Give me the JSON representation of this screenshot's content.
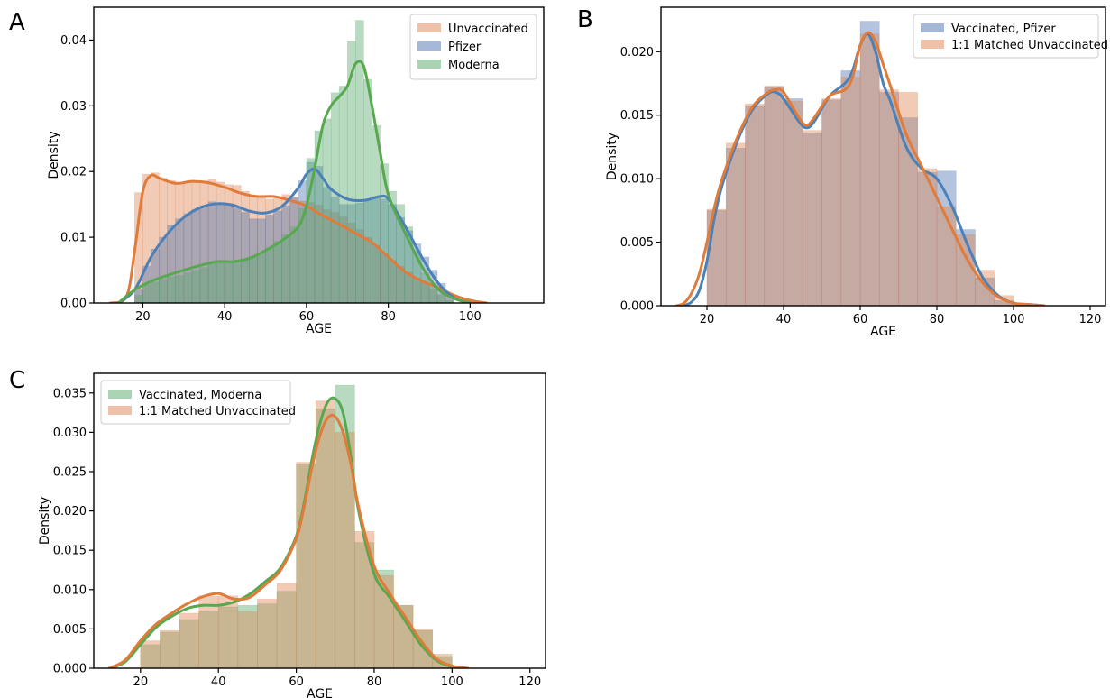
{
  "colors": {
    "orange": "#dd8452",
    "blue": "#4c72b0",
    "green": "#55a868",
    "orange_kde": "#e07b39",
    "blue_kde": "#4b80b8",
    "green_kde": "#57a84e"
  },
  "chart_data": [
    {
      "panel": "A",
      "type": "bar",
      "xlabel": "AGE",
      "ylabel": "Density",
      "xlim": [
        8,
        118
      ],
      "ylim": [
        0,
        0.045
      ],
      "xticks": [
        20,
        40,
        60,
        80,
        100
      ],
      "yticks": [
        0.0,
        0.01,
        0.02,
        0.03,
        0.04
      ],
      "ytick_labels": [
        "0.00",
        "0.01",
        "0.02",
        "0.03",
        "0.04"
      ],
      "grid": false,
      "legend_position": "top-right",
      "series": [
        {
          "name": "Unvaccinated",
          "color": "#dd8452",
          "bin_width": 2,
          "bins_x": [
            18,
            20,
            22,
            24,
            26,
            28,
            30,
            32,
            34,
            36,
            38,
            40,
            42,
            44,
            46,
            48,
            50,
            52,
            54,
            56,
            58,
            60,
            62,
            64,
            66,
            68,
            70,
            72,
            74,
            76,
            78,
            80,
            82,
            84,
            86,
            88,
            90,
            92,
            94
          ],
          "values": [
            0.0168,
            0.0196,
            0.0198,
            0.019,
            0.0186,
            0.0184,
            0.0184,
            0.0186,
            0.0186,
            0.0188,
            0.0184,
            0.018,
            0.0179,
            0.017,
            0.0164,
            0.0162,
            0.0158,
            0.0162,
            0.0165,
            0.0161,
            0.0155,
            0.0153,
            0.0149,
            0.0142,
            0.0138,
            0.0131,
            0.0122,
            0.0112,
            0.01,
            0.0088,
            0.0076,
            0.0065,
            0.0056,
            0.0047,
            0.0038,
            0.003,
            0.0022,
            0.0014,
            0.0008
          ],
          "kde_x": [
            12,
            16,
            18,
            20,
            22,
            24,
            28,
            32,
            36,
            40,
            44,
            48,
            52,
            56,
            60,
            62,
            64,
            68,
            72,
            76,
            80,
            84,
            88,
            92,
            96,
            100,
            104
          ],
          "kde_y": [
            0.0,
            0.001,
            0.008,
            0.017,
            0.0194,
            0.019,
            0.0182,
            0.0185,
            0.0183,
            0.0176,
            0.0167,
            0.0162,
            0.0162,
            0.0156,
            0.0148,
            0.014,
            0.0133,
            0.012,
            0.0106,
            0.0092,
            0.007,
            0.0048,
            0.0034,
            0.0024,
            0.0012,
            0.0004,
            0.0
          ]
        },
        {
          "name": "Pfizer",
          "color": "#4c72b0",
          "bin_width": 2,
          "bins_x": [
            18,
            20,
            22,
            24,
            26,
            28,
            30,
            32,
            34,
            36,
            38,
            40,
            42,
            44,
            46,
            48,
            50,
            52,
            54,
            56,
            58,
            60,
            62,
            64,
            66,
            68,
            70,
            72,
            74,
            76,
            78,
            80,
            82,
            84,
            86,
            88,
            90,
            92,
            94
          ],
          "values": [
            0.002,
            0.0056,
            0.0082,
            0.01,
            0.0118,
            0.0128,
            0.0136,
            0.0142,
            0.0148,
            0.0154,
            0.0152,
            0.015,
            0.0146,
            0.0138,
            0.0128,
            0.0128,
            0.0134,
            0.014,
            0.0148,
            0.016,
            0.0186,
            0.0214,
            0.0208,
            0.0176,
            0.016,
            0.015,
            0.015,
            0.0152,
            0.0156,
            0.016,
            0.0158,
            0.015,
            0.013,
            0.011,
            0.009,
            0.007,
            0.005,
            0.003,
            0.0012
          ],
          "kde_x": [
            14,
            18,
            22,
            26,
            30,
            34,
            38,
            42,
            46,
            50,
            54,
            58,
            60,
            62,
            64,
            66,
            70,
            74,
            78,
            80,
            84,
            88,
            92,
            96,
            100
          ],
          "kde_y": [
            0.0,
            0.002,
            0.007,
            0.0105,
            0.013,
            0.0145,
            0.0151,
            0.0149,
            0.014,
            0.0137,
            0.0147,
            0.0175,
            0.0196,
            0.0204,
            0.019,
            0.0173,
            0.0158,
            0.0156,
            0.0162,
            0.0158,
            0.0118,
            0.0072,
            0.0032,
            0.0008,
            0.0
          ]
        },
        {
          "name": "Moderna",
          "color": "#55a868",
          "bin_width": 2,
          "bins_x": [
            18,
            20,
            22,
            24,
            26,
            28,
            30,
            32,
            34,
            36,
            38,
            40,
            42,
            44,
            46,
            48,
            50,
            52,
            54,
            56,
            58,
            60,
            62,
            64,
            66,
            68,
            70,
            72,
            74,
            76,
            78,
            80,
            82,
            84,
            86,
            88,
            90,
            92,
            94
          ],
          "values": [
            0.0012,
            0.0028,
            0.0032,
            0.0036,
            0.004,
            0.0042,
            0.0046,
            0.005,
            0.0054,
            0.006,
            0.0062,
            0.0062,
            0.0064,
            0.0066,
            0.007,
            0.0076,
            0.0084,
            0.0094,
            0.0104,
            0.0116,
            0.0144,
            0.022,
            0.0262,
            0.028,
            0.032,
            0.033,
            0.0398,
            0.043,
            0.034,
            0.027,
            0.0212,
            0.017,
            0.015,
            0.0116,
            0.008,
            0.0046,
            0.0026,
            0.0012,
            0.0004
          ],
          "kde_x": [
            14,
            18,
            22,
            26,
            30,
            34,
            38,
            42,
            46,
            50,
            54,
            58,
            60,
            62,
            64,
            66,
            68,
            70,
            72,
            74,
            76,
            78,
            80,
            84,
            88,
            92,
            96,
            100
          ],
          "kde_y": [
            0.0,
            0.002,
            0.0033,
            0.0042,
            0.005,
            0.0057,
            0.0063,
            0.0063,
            0.0068,
            0.008,
            0.0095,
            0.0116,
            0.0148,
            0.0205,
            0.027,
            0.03,
            0.0314,
            0.033,
            0.0364,
            0.036,
            0.03,
            0.023,
            0.0165,
            0.0108,
            0.0058,
            0.0022,
            0.0007,
            0.0
          ]
        }
      ]
    },
    {
      "panel": "B",
      "type": "bar",
      "xlabel": "AGE",
      "ylabel": "Density",
      "xlim": [
        8,
        124
      ],
      "ylim": [
        0,
        0.0235
      ],
      "xticks": [
        20,
        40,
        60,
        80,
        100,
        120
      ],
      "yticks": [
        0.0,
        0.005,
        0.01,
        0.015,
        0.02
      ],
      "ytick_labels": [
        "0.000",
        "0.005",
        "0.010",
        "0.015",
        "0.020"
      ],
      "grid": false,
      "legend_position": "top-right",
      "series": [
        {
          "name": "Vaccinated, Pfizer",
          "color": "#4c72b0",
          "bin_width": 5,
          "bins_x": [
            20,
            25,
            30,
            35,
            40,
            45,
            50,
            55,
            60,
            65,
            70,
            75,
            80,
            85,
            90,
            95
          ],
          "values": [
            0.0075,
            0.0124,
            0.0157,
            0.0172,
            0.0163,
            0.0136,
            0.0162,
            0.0185,
            0.0224,
            0.0168,
            0.0148,
            0.0105,
            0.0106,
            0.006,
            0.0022,
            0.0004
          ],
          "kde_x": [
            14,
            16,
            18,
            20,
            22,
            24,
            28,
            32,
            36,
            38,
            40,
            44,
            46,
            48,
            52,
            56,
            58,
            60,
            62,
            64,
            66,
            68,
            72,
            76,
            80,
            84,
            88,
            92,
            96,
            100,
            104,
            108
          ],
          "kde_y": [
            0.0,
            0.0003,
            0.0012,
            0.0035,
            0.007,
            0.0095,
            0.013,
            0.0155,
            0.0167,
            0.0168,
            0.0163,
            0.0145,
            0.014,
            0.0145,
            0.0165,
            0.0175,
            0.0185,
            0.0205,
            0.0214,
            0.02,
            0.0175,
            0.016,
            0.0125,
            0.0108,
            0.01,
            0.0078,
            0.0048,
            0.0022,
            0.0008,
            0.0002,
            0.0001,
            0.0
          ]
        },
        {
          "name": "1:1 Matched Unvaccinated",
          "color": "#dd8452",
          "bin_width": 5,
          "bins_x": [
            20,
            25,
            30,
            35,
            40,
            45,
            50,
            55,
            60,
            65,
            70,
            75,
            80,
            85,
            90,
            95
          ],
          "values": [
            0.0076,
            0.0128,
            0.0159,
            0.0173,
            0.0161,
            0.0138,
            0.0163,
            0.018,
            0.0214,
            0.017,
            0.0168,
            0.0108,
            0.0078,
            0.0056,
            0.0028,
            0.0008
          ],
          "kde_x": [
            12,
            14,
            16,
            18,
            20,
            22,
            24,
            28,
            32,
            36,
            38,
            40,
            44,
            46,
            48,
            52,
            56,
            58,
            60,
            62,
            64,
            66,
            68,
            72,
            76,
            80,
            84,
            88,
            92,
            96,
            100,
            104,
            108
          ],
          "kde_y": [
            0.0,
            0.0002,
            0.001,
            0.0025,
            0.005,
            0.0078,
            0.01,
            0.0133,
            0.0157,
            0.0168,
            0.017,
            0.0168,
            0.0148,
            0.0142,
            0.0148,
            0.0165,
            0.017,
            0.018,
            0.0205,
            0.0215,
            0.0208,
            0.019,
            0.0172,
            0.0135,
            0.011,
            0.0085,
            0.006,
            0.0036,
            0.0018,
            0.0007,
            0.0002,
            0.0001,
            0.0
          ]
        }
      ]
    },
    {
      "panel": "C",
      "type": "bar",
      "xlabel": "AGE",
      "ylabel": "Density",
      "xlim": [
        8,
        124
      ],
      "ylim": [
        0,
        0.0375
      ],
      "xticks": [
        20,
        40,
        60,
        80,
        100,
        120
      ],
      "yticks": [
        0.0,
        0.005,
        0.01,
        0.015,
        0.02,
        0.025,
        0.03,
        0.035
      ],
      "ytick_labels": [
        "0.000",
        "0.005",
        "0.010",
        "0.015",
        "0.020",
        "0.025",
        "0.030",
        "0.035"
      ],
      "grid": false,
      "legend_position": "top-left",
      "series": [
        {
          "name": "Vaccinated, Moderna",
          "color": "#55a868",
          "bin_width": 5,
          "bins_x": [
            20,
            25,
            30,
            35,
            40,
            45,
            50,
            55,
            60,
            65,
            70,
            75,
            80,
            85,
            90,
            95
          ],
          "values": [
            0.003,
            0.0046,
            0.0062,
            0.0072,
            0.0078,
            0.008,
            0.0082,
            0.0098,
            0.026,
            0.033,
            0.036,
            0.016,
            0.0125,
            0.008,
            0.0048,
            0.0015
          ],
          "kde_x": [
            12,
            16,
            20,
            24,
            28,
            32,
            36,
            40,
            44,
            48,
            52,
            56,
            60,
            62,
            64,
            66,
            68,
            70,
            72,
            74,
            76,
            80,
            84,
            88,
            92,
            96,
            100,
            104
          ],
          "kde_y": [
            0.0,
            0.0008,
            0.003,
            0.0052,
            0.0066,
            0.0076,
            0.008,
            0.008,
            0.0084,
            0.0094,
            0.011,
            0.0128,
            0.0168,
            0.021,
            0.0265,
            0.031,
            0.0338,
            0.0343,
            0.0325,
            0.027,
            0.02,
            0.012,
            0.009,
            0.006,
            0.003,
            0.001,
            0.0002,
            0.0
          ]
        },
        {
          "name": "1:1 Matched Unvaccinated",
          "color": "#dd8452",
          "bin_width": 5,
          "bins_x": [
            20,
            25,
            30,
            35,
            40,
            45,
            50,
            55,
            60,
            65,
            70,
            75,
            80,
            85,
            90,
            95
          ],
          "values": [
            0.0035,
            0.0048,
            0.007,
            0.0092,
            0.0092,
            0.0072,
            0.0088,
            0.0108,
            0.0262,
            0.034,
            0.03,
            0.0174,
            0.0118,
            0.008,
            0.005,
            0.0018
          ],
          "kde_x": [
            12,
            16,
            20,
            24,
            28,
            32,
            36,
            40,
            44,
            48,
            52,
            56,
            60,
            62,
            64,
            66,
            68,
            70,
            72,
            74,
            76,
            80,
            84,
            88,
            92,
            96,
            100,
            104
          ],
          "kde_y": [
            0.0,
            0.001,
            0.0035,
            0.0056,
            0.007,
            0.0082,
            0.0091,
            0.0095,
            0.0088,
            0.009,
            0.0106,
            0.0125,
            0.0165,
            0.0205,
            0.0255,
            0.0295,
            0.0318,
            0.032,
            0.03,
            0.026,
            0.0205,
            0.013,
            0.0095,
            0.0065,
            0.0035,
            0.0012,
            0.0003,
            0.0
          ]
        }
      ]
    }
  ]
}
